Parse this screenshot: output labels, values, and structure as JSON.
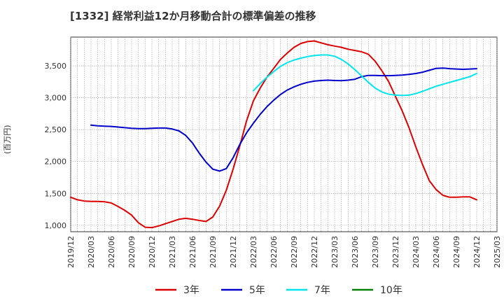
{
  "title": "[1332]  経常利益12か月移動合計の標準偏差の推移",
  "ylabel": "(百万円)",
  "colors": {
    "3年": "#dd0000",
    "5年": "#0000cc",
    "7年": "#00e5ee",
    "10年": "#008000"
  },
  "chart_data": {
    "type": "line",
    "title": "[1332]  経常利益12か月移動合計の標準偏差の推移",
    "xlabel": "",
    "ylabel": "(百万円)",
    "x_ticks": [
      "2019/12",
      "2020/03",
      "2020/06",
      "2020/09",
      "2020/12",
      "2021/03",
      "2021/06",
      "2021/09",
      "2021/12",
      "2022/03",
      "2022/06",
      "2022/09",
      "2022/12",
      "2023/03",
      "2023/06",
      "2023/09",
      "2023/12",
      "2024/03",
      "2024/06",
      "2024/09",
      "2024/12",
      "2025/03"
    ],
    "y_ticks": [
      "1,000",
      "1,500",
      "2,000",
      "2,500",
      "3,000",
      "3,500"
    ],
    "ylim": [
      900,
      3950
    ],
    "grid": true,
    "legend_position": "bottom",
    "series": [
      {
        "name": "3年",
        "x": [
          "2019/12",
          "2020/01",
          "2020/02",
          "2020/03",
          "2020/04",
          "2020/05",
          "2020/06",
          "2020/07",
          "2020/08",
          "2020/09",
          "2020/10",
          "2020/11",
          "2020/12",
          "2021/01",
          "2021/02",
          "2021/03",
          "2021/04",
          "2021/05",
          "2021/06",
          "2021/07",
          "2021/08",
          "2021/09",
          "2021/10",
          "2021/11",
          "2021/12",
          "2022/01",
          "2022/02",
          "2022/03",
          "2022/04",
          "2022/05",
          "2022/06",
          "2022/07",
          "2022/08",
          "2022/09",
          "2022/10",
          "2022/11",
          "2022/12",
          "2023/01",
          "2023/02",
          "2023/03",
          "2023/04",
          "2023/05",
          "2023/06",
          "2023/07",
          "2023/08",
          "2023/09",
          "2023/10",
          "2023/11",
          "2023/12",
          "2024/01",
          "2024/02",
          "2024/03",
          "2024/04",
          "2024/05",
          "2024/06",
          "2024/07",
          "2024/08",
          "2024/09",
          "2024/10",
          "2024/11",
          "2024/12"
        ],
        "values": [
          1440,
          1400,
          1380,
          1375,
          1375,
          1370,
          1350,
          1295,
          1235,
          1160,
          1040,
          970,
          965,
          990,
          1025,
          1060,
          1095,
          1110,
          1095,
          1075,
          1060,
          1130,
          1300,
          1550,
          1880,
          2250,
          2640,
          2950,
          3150,
          3320,
          3460,
          3600,
          3700,
          3790,
          3850,
          3880,
          3890,
          3860,
          3830,
          3810,
          3790,
          3760,
          3740,
          3720,
          3680,
          3570,
          3420,
          3250,
          3020,
          2790,
          2530,
          2230,
          1950,
          1700,
          1560,
          1470,
          1440,
          1440,
          1445,
          1445,
          1400
        ]
      },
      {
        "name": "5年",
        "x": [
          "2020/03",
          "2020/04",
          "2020/05",
          "2020/06",
          "2020/07",
          "2020/08",
          "2020/09",
          "2020/10",
          "2020/11",
          "2020/12",
          "2021/01",
          "2021/02",
          "2021/03",
          "2021/04",
          "2021/05",
          "2021/06",
          "2021/07",
          "2021/08",
          "2021/09",
          "2021/10",
          "2021/11",
          "2021/12",
          "2022/01",
          "2022/02",
          "2022/03",
          "2022/04",
          "2022/05",
          "2022/06",
          "2022/07",
          "2022/08",
          "2022/09",
          "2022/10",
          "2022/11",
          "2022/12",
          "2023/01",
          "2023/02",
          "2023/03",
          "2023/04",
          "2023/05",
          "2023/06",
          "2023/07",
          "2023/08",
          "2023/09",
          "2023/10",
          "2023/11",
          "2023/12",
          "2024/01",
          "2024/02",
          "2024/03",
          "2024/04",
          "2024/05",
          "2024/06",
          "2024/07",
          "2024/08",
          "2024/09",
          "2024/10",
          "2024/11",
          "2024/12"
        ],
        "values": [
          2570,
          2560,
          2555,
          2550,
          2540,
          2530,
          2520,
          2515,
          2515,
          2520,
          2525,
          2525,
          2510,
          2480,
          2410,
          2290,
          2130,
          1990,
          1880,
          1850,
          1890,
          2060,
          2270,
          2450,
          2600,
          2740,
          2860,
          2960,
          3050,
          3120,
          3170,
          3210,
          3240,
          3260,
          3270,
          3275,
          3270,
          3268,
          3275,
          3290,
          3330,
          3350,
          3350,
          3345,
          3345,
          3350,
          3355,
          3365,
          3380,
          3400,
          3430,
          3460,
          3465,
          3455,
          3450,
          3445,
          3450,
          3455
        ]
      },
      {
        "name": "7年",
        "x": [
          "2022/03",
          "2022/04",
          "2022/05",
          "2022/06",
          "2022/07",
          "2022/08",
          "2022/09",
          "2022/10",
          "2022/11",
          "2022/12",
          "2023/01",
          "2023/02",
          "2023/03",
          "2023/04",
          "2023/05",
          "2023/06",
          "2023/07",
          "2023/08",
          "2023/09",
          "2023/10",
          "2023/11",
          "2023/12",
          "2024/01",
          "2024/02",
          "2024/03",
          "2024/04",
          "2024/05",
          "2024/06",
          "2024/07",
          "2024/08",
          "2024/09",
          "2024/10",
          "2024/11",
          "2024/12"
        ],
        "values": [
          3110,
          3220,
          3320,
          3410,
          3490,
          3550,
          3590,
          3620,
          3645,
          3660,
          3670,
          3670,
          3650,
          3600,
          3530,
          3440,
          3340,
          3240,
          3150,
          3090,
          3055,
          3040,
          3035,
          3040,
          3065,
          3100,
          3140,
          3180,
          3210,
          3240,
          3270,
          3300,
          3330,
          3380
        ]
      },
      {
        "name": "10年",
        "x": [],
        "values": []
      }
    ]
  }
}
